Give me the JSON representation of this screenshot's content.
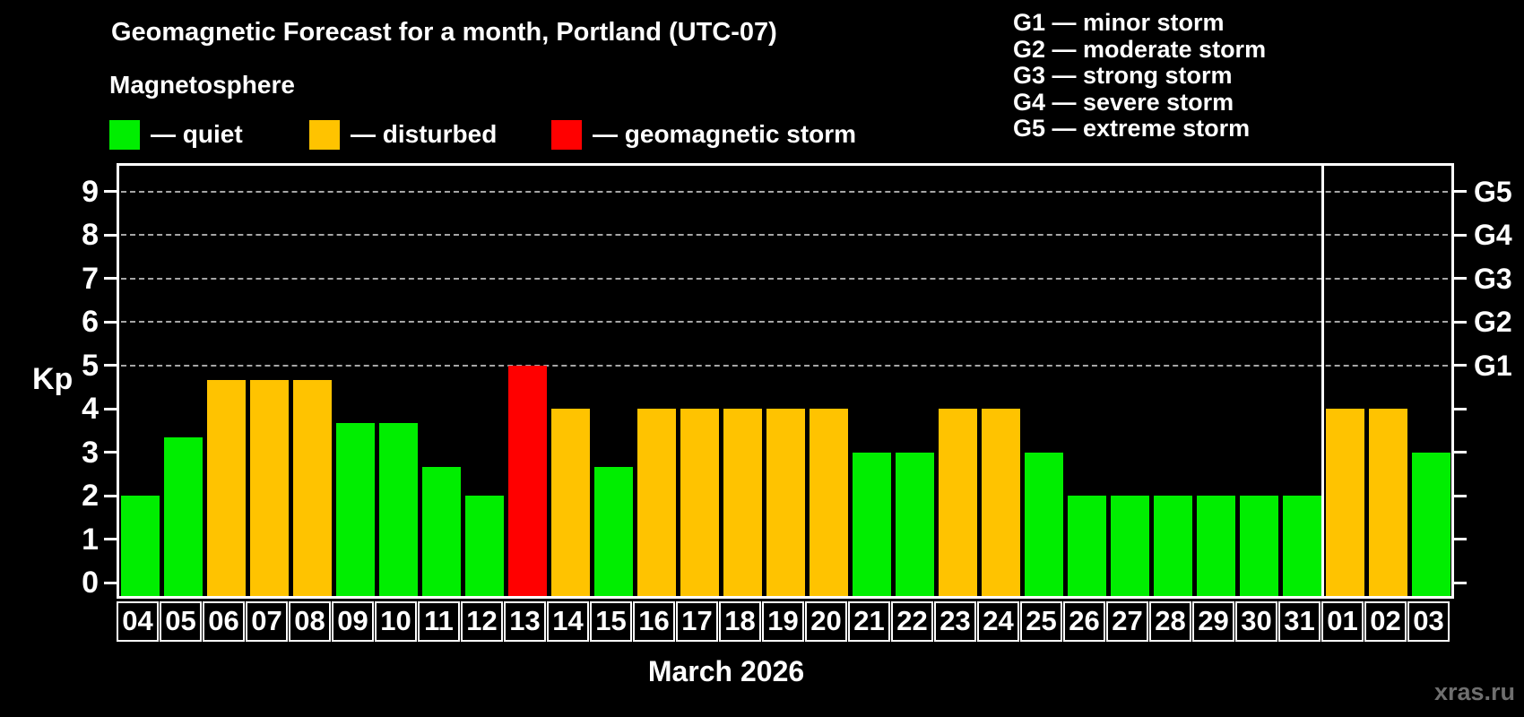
{
  "header": {
    "title": "Geomagnetic Forecast for a month, Portland (UTC-07)",
    "subtitle": "Magnetosphere"
  },
  "legend": {
    "items": [
      {
        "key": "quiet",
        "label": "— quiet",
        "color": "#00ee00"
      },
      {
        "key": "disturbed",
        "label": "— disturbed",
        "color": "#ffc300"
      },
      {
        "key": "storm",
        "label": "— geomagnetic storm",
        "color": "#ff0000"
      }
    ]
  },
  "g_legend": [
    "G1 — minor storm",
    "G2 — moderate storm",
    "G3 — strong storm",
    "G4 — severe storm",
    "G5 — extreme storm"
  ],
  "chart_data": {
    "type": "bar",
    "title": "Geomagnetic Forecast for a month, Portland (UTC-07)",
    "xlabel": "March 2026",
    "ylabel": "Kp",
    "ylim": [
      0,
      9
    ],
    "yticks": [
      0,
      1,
      2,
      3,
      4,
      5,
      6,
      7,
      8,
      9
    ],
    "gridlines_at": [
      5,
      6,
      7,
      8,
      9
    ],
    "grid": "dashed horizontal at storm levels only",
    "right_axis": [
      {
        "label": "G5",
        "kp": 9
      },
      {
        "label": "G4",
        "kp": 8
      },
      {
        "label": "G3",
        "kp": 7
      },
      {
        "label": "G2",
        "kp": 6
      },
      {
        "label": "G1",
        "kp": 5
      }
    ],
    "categories": [
      "04",
      "05",
      "06",
      "07",
      "08",
      "09",
      "10",
      "11",
      "12",
      "13",
      "14",
      "15",
      "16",
      "17",
      "18",
      "19",
      "20",
      "21",
      "22",
      "23",
      "24",
      "25",
      "26",
      "27",
      "28",
      "29",
      "30",
      "31",
      "01",
      "02",
      "03"
    ],
    "series": [
      {
        "name": "Kp forecast",
        "values": [
          2,
          3.33,
          4.67,
          4.67,
          4.67,
          3.67,
          3.67,
          2.67,
          2,
          5,
          4,
          2.67,
          4,
          4,
          4,
          4,
          4,
          3,
          3,
          4,
          4,
          3,
          2,
          2,
          2,
          2,
          2,
          2,
          4,
          4,
          3
        ],
        "statuses": [
          "quiet",
          "quiet",
          "disturbed",
          "disturbed",
          "disturbed",
          "quiet",
          "quiet",
          "quiet",
          "quiet",
          "storm",
          "disturbed",
          "quiet",
          "disturbed",
          "disturbed",
          "disturbed",
          "disturbed",
          "disturbed",
          "quiet",
          "quiet",
          "disturbed",
          "disturbed",
          "quiet",
          "quiet",
          "quiet",
          "quiet",
          "quiet",
          "quiet",
          "quiet",
          "disturbed",
          "disturbed",
          "quiet"
        ]
      }
    ],
    "status_colors": {
      "quiet": "#00ee00",
      "disturbed": "#ffc300",
      "storm": "#ff0000"
    },
    "month_separator_between": [
      "31",
      "01"
    ],
    "legend_position": "top"
  },
  "footer": {
    "month_label": "March 2026",
    "watermark": "xras.ru"
  }
}
